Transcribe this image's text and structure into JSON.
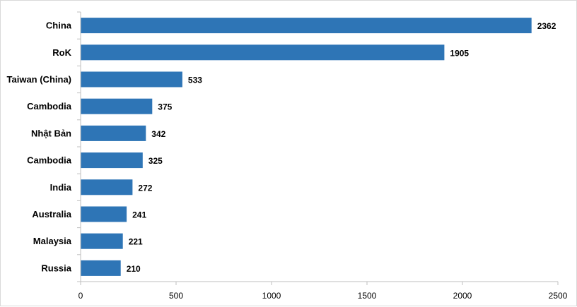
{
  "chart_data": {
    "type": "bar",
    "orientation": "horizontal",
    "title": "",
    "xlabel": "",
    "ylabel": "",
    "categories": [
      "China",
      "RoK",
      "Taiwan (China)",
      "Cambodia",
      "Nhật Bản",
      "Cambodia",
      "India",
      "Australia",
      "Malaysia",
      "Russia"
    ],
    "values": [
      2362,
      1905,
      533,
      375,
      342,
      325,
      272,
      241,
      221,
      210
    ],
    "value_labels": [
      "2362",
      "1905",
      "533",
      "375",
      "342",
      "325",
      "272",
      "241",
      "221",
      "210"
    ],
    "xlim": [
      0,
      2500
    ],
    "x_ticks": [
      0,
      500,
      1000,
      1500,
      2000,
      2500
    ],
    "x_tick_labels": [
      "0",
      "500",
      "1000",
      "1500",
      "2000",
      "2500"
    ],
    "grid": false,
    "legend": "none",
    "bar_color": "#2e75b6",
    "axis_color": "#bfbfbf"
  }
}
